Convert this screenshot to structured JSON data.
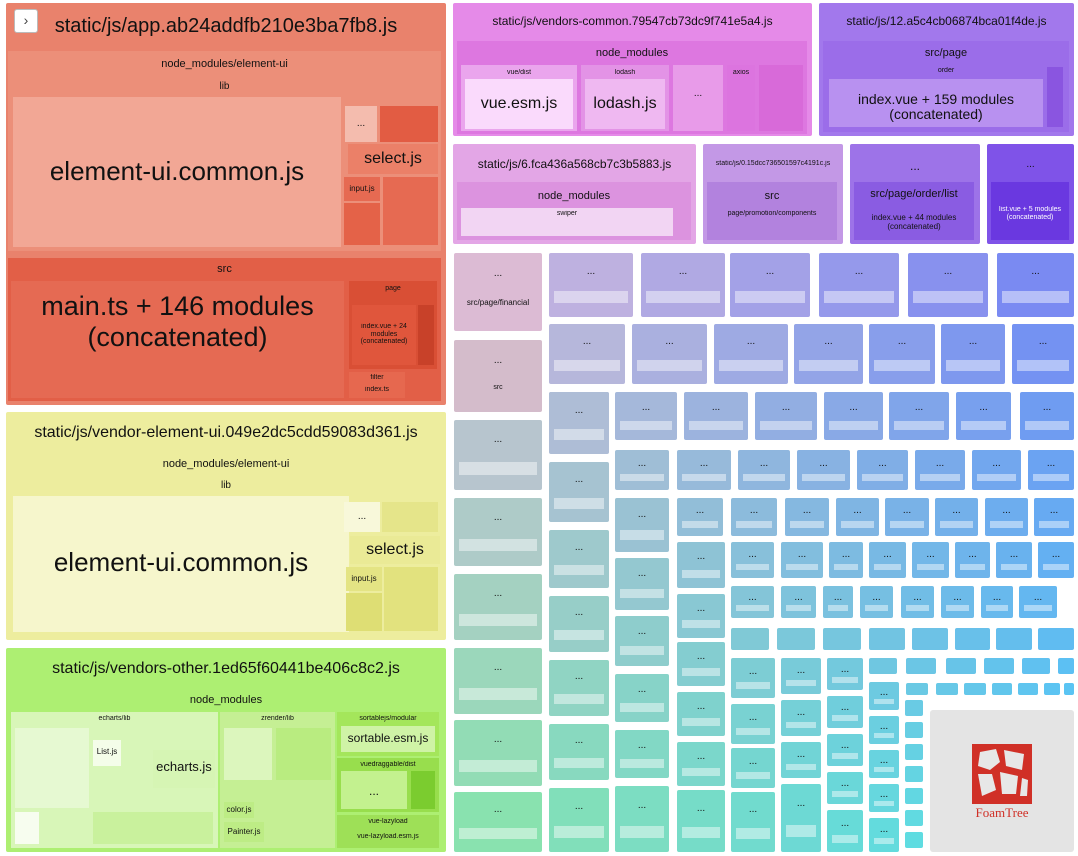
{
  "toggle_icon": "›",
  "chunks": {
    "app": {
      "title": "static/js/app.ab24addfb210e3ba7fb8.js",
      "node_modules": "node_modules/element-ui",
      "lib": "lib",
      "element_ui_common": "element-ui.common.js",
      "select": "select.js",
      "input": "input.js",
      "src": "src",
      "main": "main.ts + 146 modules (concatenated)",
      "page": "page",
      "index_vue": "index.vue + 24 modules (concatenated)",
      "filter": "filter",
      "index_ts": "index.ts"
    },
    "vendor_element": {
      "title": "static/js/vendor-element-ui.049e2dc5cdd59083d361.js",
      "node_modules": "node_modules/element-ui",
      "lib": "lib",
      "element_ui_common": "element-ui.common.js",
      "select": "select.js",
      "input": "input.js"
    },
    "vendors_other": {
      "title": "static/js/vendors-other.1ed65f60441be406c8c2.js",
      "node_modules": "node_modules",
      "echarts_lib": "echarts/lib",
      "list": "List.js",
      "echarts": "echarts.js",
      "zrender_lib": "zrender/lib",
      "color": "color.js",
      "painter": "Painter.js",
      "sortablejs": "sortablejs/modular",
      "sortable": "sortable.esm.js",
      "vuedraggable": "vuedraggable/dist",
      "vue_lazyload": "vue-lazyload",
      "vue_lazyload_esm": "vue-lazyload.esm.js"
    },
    "vendors_common": {
      "title": "static/js/vendors-common.79547cb73dc9f741e5a4.js",
      "node_modules": "node_modules",
      "vue_dist": "vue/dist",
      "vue_esm": "vue.esm.js",
      "lodash": "lodash",
      "lodash_js": "lodash.js",
      "axios": "axios"
    },
    "chunk12": {
      "title": "static/js/12.a5c4cb06874bca01f4de.js",
      "src_page": "src/page",
      "order": "order",
      "index_vue": "index.vue + 159 modules (concatenated)"
    },
    "chunk6": {
      "title": "static/js/6.fca436a568cb7c3b5883.js",
      "node_modules": "node_modules",
      "swiper": "swiper"
    },
    "chunk0": {
      "title": "static/js/0.15dcc736501597c4191c.js",
      "src": "src",
      "components": "page/promotion/components"
    },
    "order_list": {
      "src_path": "src/page/order/list",
      "index_vue": "index.vue + 44 modules (concatenated)"
    },
    "list_small": {
      "list_vue": "list.vue + 5 modules (concatenated)"
    },
    "financial": {
      "src_path": "src/page/financial"
    },
    "src_small": {
      "src": "src"
    }
  },
  "ellipsis": "...",
  "logo": {
    "text": "FoamTree"
  },
  "colors": {
    "app": "#e8715a",
    "vendor_element": "#ebeb9a",
    "vendors_other": "#acee75",
    "vendors_common": "#e58ae8",
    "chunk12": "#b085ee",
    "foamtree_red": "#d03027"
  }
}
